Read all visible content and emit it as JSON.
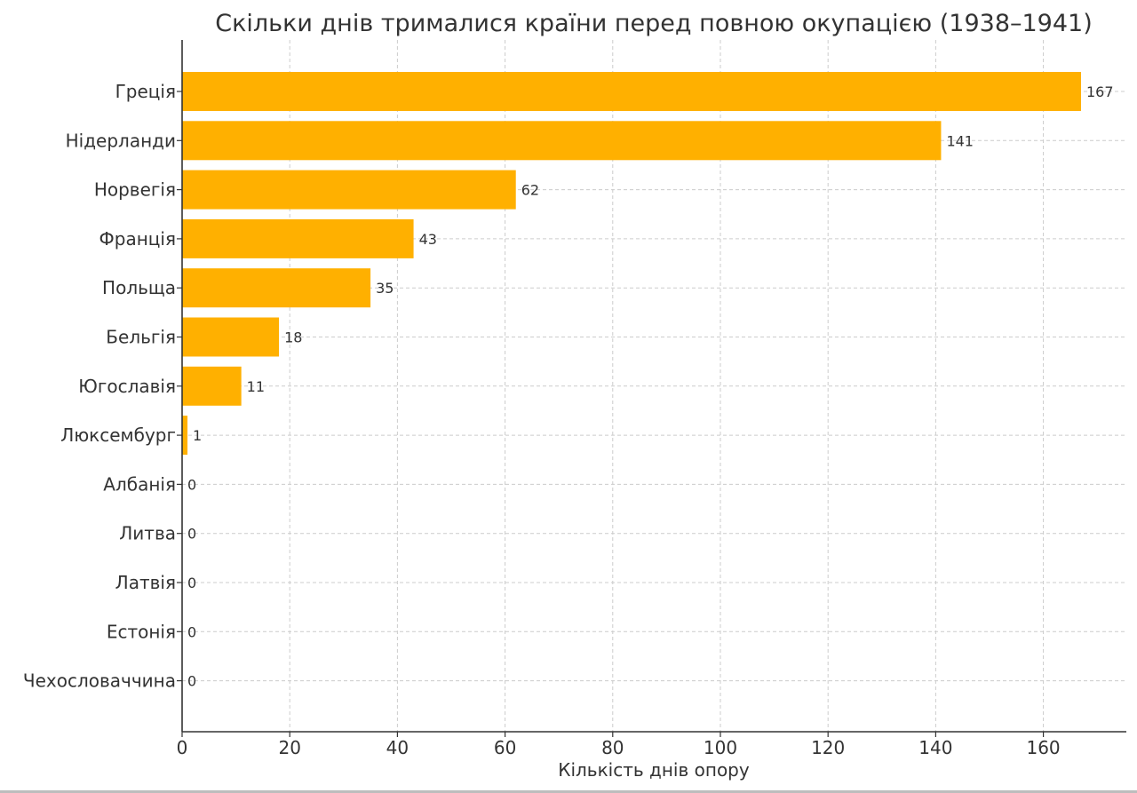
{
  "chart_data": {
    "type": "bar",
    "orientation": "horizontal",
    "title": "Скільки днів трималися країни перед повною окупацією (1938–1941)",
    "xlabel": "Кількість днів опору",
    "ylabel": "",
    "categories": [
      "Греція",
      "Нідерланди",
      "Норвегія",
      "Франція",
      "Польща",
      "Бельгія",
      "Югославія",
      "Люксембург",
      "Албанія",
      "Литва",
      "Латвія",
      "Естонія",
      "Чехословаччина"
    ],
    "values": [
      167,
      141,
      62,
      43,
      35,
      18,
      11,
      1,
      0,
      0,
      0,
      0,
      0
    ],
    "xlim": [
      0,
      175
    ],
    "xticks": [
      0,
      20,
      40,
      60,
      80,
      100,
      120,
      140,
      160
    ],
    "grid": true,
    "data_labels": true,
    "bar_color": "#FFB000",
    "text_color": "#333333",
    "grid_color": "#cccccc"
  }
}
